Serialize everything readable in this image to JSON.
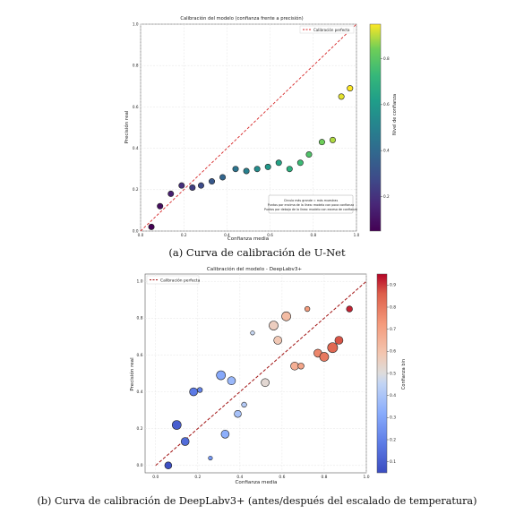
{
  "chart_data": [
    {
      "type": "scatter",
      "title": "Calibración del modelo (confianza frente a precisión)",
      "xlabel": "Confianza media",
      "ylabel": "Precisión real",
      "xlim": [
        0.0,
        1.0
      ],
      "ylim": [
        0.0,
        1.0
      ],
      "x_ticks": [
        "0.0",
        "0.2",
        "0.4",
        "0.6",
        "0.8",
        "1.0"
      ],
      "y_ticks": [
        "0.0",
        "0.2",
        "0.4",
        "0.6",
        "0.8",
        "1.0"
      ],
      "grid": true,
      "legend": {
        "position": "top-right",
        "entries": [
          "Calibración perfecta"
        ]
      },
      "colorbar": {
        "label": "Nivel de confianza",
        "colormap": "viridis",
        "range": [
          0.05,
          0.95
        ],
        "ticks": [
          "0.2",
          "0.4",
          "0.6",
          "0.8"
        ]
      },
      "annotation": [
        "Círculo más grande = más muestras",
        "Puntos por encima de la línea: modelo con poca confianza",
        "Puntos por debajo de la línea: modelo con exceso de confianza"
      ],
      "points": [
        {
          "x": 0.05,
          "y": 0.02
        },
        {
          "x": 0.09,
          "y": 0.12
        },
        {
          "x": 0.14,
          "y": 0.18
        },
        {
          "x": 0.19,
          "y": 0.22
        },
        {
          "x": 0.24,
          "y": 0.21
        },
        {
          "x": 0.28,
          "y": 0.22
        },
        {
          "x": 0.33,
          "y": 0.24
        },
        {
          "x": 0.38,
          "y": 0.26
        },
        {
          "x": 0.44,
          "y": 0.3
        },
        {
          "x": 0.49,
          "y": 0.29
        },
        {
          "x": 0.54,
          "y": 0.3
        },
        {
          "x": 0.59,
          "y": 0.31
        },
        {
          "x": 0.64,
          "y": 0.33
        },
        {
          "x": 0.69,
          "y": 0.3
        },
        {
          "x": 0.74,
          "y": 0.33
        },
        {
          "x": 0.78,
          "y": 0.37
        },
        {
          "x": 0.84,
          "y": 0.43
        },
        {
          "x": 0.89,
          "y": 0.44
        },
        {
          "x": 0.93,
          "y": 0.65
        },
        {
          "x": 0.97,
          "y": 0.69
        }
      ],
      "reference_line": [
        [
          0,
          0
        ],
        [
          1,
          1
        ]
      ]
    },
    {
      "type": "scatter",
      "title": "Calibración del modelo - DeepLabv3+",
      "xlabel": "Confianza media",
      "ylabel": "Precisión real",
      "xlim": [
        -0.05,
        1.0
      ],
      "ylim": [
        -0.04,
        1.04
      ],
      "x_ticks": [
        "0.0",
        "0.2",
        "0.4",
        "0.6",
        "0.8",
        "1.0"
      ],
      "y_ticks": [
        "0.0",
        "0.2",
        "0.4",
        "0.6",
        "0.8",
        "1.0"
      ],
      "grid": true,
      "legend": {
        "position": "top-left",
        "entries": [
          "Calibración perfecta"
        ]
      },
      "colorbar": {
        "label": "Confianza bin",
        "colormap": "coolwarm",
        "range": [
          0.05,
          0.95
        ],
        "ticks": [
          "0.1",
          "0.2",
          "0.3",
          "0.4",
          "0.5",
          "0.6",
          "0.7",
          "0.8",
          "0.9"
        ]
      },
      "points": [
        {
          "x": 0.06,
          "y": 0.0,
          "c": 0.06,
          "s": 5
        },
        {
          "x": 0.1,
          "y": 0.22,
          "c": 0.1,
          "s": 7
        },
        {
          "x": 0.14,
          "y": 0.13,
          "c": 0.14,
          "s": 6
        },
        {
          "x": 0.18,
          "y": 0.4,
          "c": 0.18,
          "s": 6
        },
        {
          "x": 0.21,
          "y": 0.41,
          "c": 0.21,
          "s": 3
        },
        {
          "x": 0.26,
          "y": 0.04,
          "c": 0.26,
          "s": 2
        },
        {
          "x": 0.31,
          "y": 0.49,
          "c": 0.31,
          "s": 7
        },
        {
          "x": 0.33,
          "y": 0.17,
          "c": 0.33,
          "s": 6
        },
        {
          "x": 0.36,
          "y": 0.46,
          "c": 0.36,
          "s": 6
        },
        {
          "x": 0.39,
          "y": 0.28,
          "c": 0.39,
          "s": 5
        },
        {
          "x": 0.42,
          "y": 0.33,
          "c": 0.42,
          "s": 3
        },
        {
          "x": 0.46,
          "y": 0.72,
          "c": 0.46,
          "s": 2
        },
        {
          "x": 0.52,
          "y": 0.45,
          "c": 0.52,
          "s": 6
        },
        {
          "x": 0.56,
          "y": 0.76,
          "c": 0.56,
          "s": 7
        },
        {
          "x": 0.58,
          "y": 0.68,
          "c": 0.58,
          "s": 6
        },
        {
          "x": 0.62,
          "y": 0.81,
          "c": 0.62,
          "s": 7
        },
        {
          "x": 0.66,
          "y": 0.54,
          "c": 0.66,
          "s": 6
        },
        {
          "x": 0.69,
          "y": 0.54,
          "c": 0.69,
          "s": 4
        },
        {
          "x": 0.72,
          "y": 0.85,
          "c": 0.72,
          "s": 3
        },
        {
          "x": 0.77,
          "y": 0.61,
          "c": 0.77,
          "s": 6
        },
        {
          "x": 0.8,
          "y": 0.59,
          "c": 0.8,
          "s": 7
        },
        {
          "x": 0.84,
          "y": 0.64,
          "c": 0.84,
          "s": 8
        },
        {
          "x": 0.87,
          "y": 0.68,
          "c": 0.87,
          "s": 6
        },
        {
          "x": 0.92,
          "y": 0.85,
          "c": 0.92,
          "s": 4
        }
      ],
      "reference_line": [
        [
          0,
          0
        ],
        [
          1,
          1
        ]
      ]
    }
  ],
  "captions": {
    "a": "(a) Curva de calibración de U-Net",
    "b": "(b) Curva de calibración de DeepLabv3+ (antes/después del escalado de temperatura)"
  },
  "colors": {
    "reference_line": "#d62728",
    "point_edge": "#222222"
  }
}
